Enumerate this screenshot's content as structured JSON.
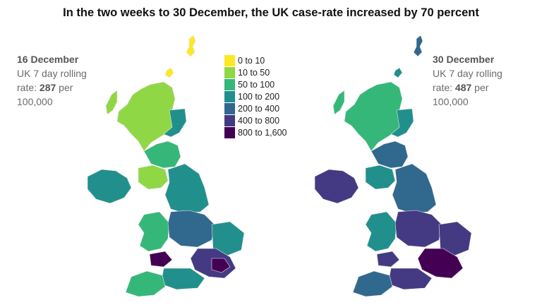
{
  "title": "In the two weeks to 30 December, the UK case-rate increased by 70 percent",
  "left_panel": {
    "date": "16 December",
    "line1": "UK 7 day rolling",
    "rate_prefix": "rate: ",
    "rate_value": "287",
    "rate_suffix": " per",
    "line3": "100,000"
  },
  "right_panel": {
    "date": "30 December",
    "line1": "UK 7 day rolling",
    "rate_prefix": "rate: ",
    "rate_value": "487",
    "rate_suffix": " per",
    "line3": "100,000"
  },
  "legend": [
    {
      "label": "0 to 10",
      "color": "#fde725"
    },
    {
      "label": "10 to 50",
      "color": "#8fd744"
    },
    {
      "label": "50 to 100",
      "color": "#35b779"
    },
    {
      "label": "100 to 200",
      "color": "#21908d"
    },
    {
      "label": "200 to 400",
      "color": "#31688e"
    },
    {
      "label": "400 to 800",
      "color": "#443a83"
    },
    {
      "label": "800 to 1,600",
      "color": "#440154"
    }
  ]
}
